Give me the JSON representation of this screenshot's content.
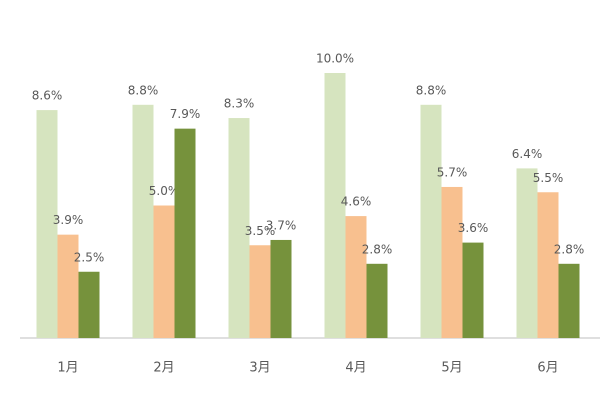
{
  "chart_data": {
    "type": "bar",
    "categories": [
      "1月",
      "2月",
      "3月",
      "4月",
      "5月",
      "6月"
    ],
    "series": [
      {
        "color": "#d6e4bf",
        "values": [
          8.6,
          8.8,
          8.3,
          10.0,
          8.8,
          6.4
        ],
        "value_labels": [
          "8.6%",
          "8.8%",
          "8.3%",
          "10.0%",
          "8.8%",
          "6.4%"
        ]
      },
      {
        "color": "#f8c08f",
        "values": [
          3.9,
          5.0,
          3.5,
          4.6,
          5.7,
          5.5
        ],
        "value_labels": [
          "3.9%",
          "5.0%",
          "3.5%",
          "4.6%",
          "5.7%",
          "5.5%"
        ]
      },
      {
        "color": "#76923c",
        "values": [
          2.5,
          7.9,
          3.7,
          2.8,
          3.6,
          2.8
        ],
        "value_labels": [
          "2.5%",
          "7.9%",
          "3.7%",
          "2.8%",
          "3.6%",
          "2.8%"
        ]
      }
    ]
  }
}
